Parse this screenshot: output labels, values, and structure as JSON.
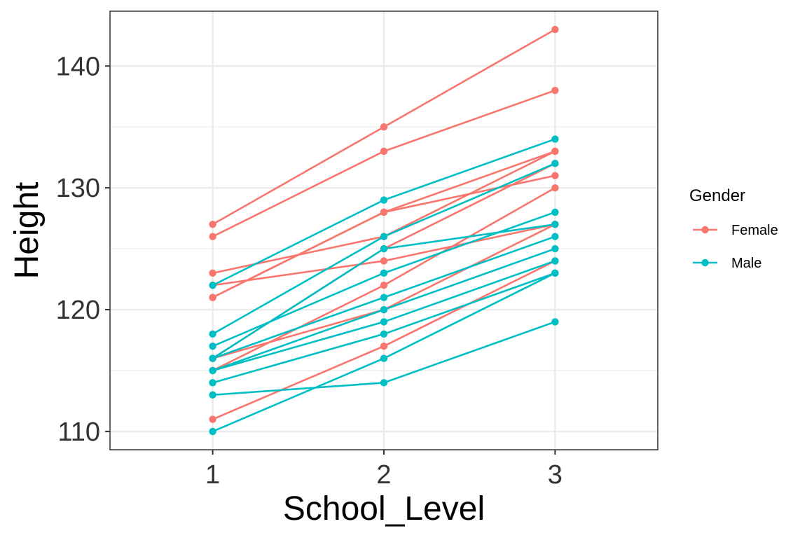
{
  "chart_data": {
    "type": "line",
    "xlabel": "School_Level",
    "ylabel": "Height",
    "x": [
      1,
      2,
      3
    ],
    "xlim": [
      0.4,
      3.6
    ],
    "ylim": [
      108.5,
      144.5
    ],
    "x_ticks": [
      "1",
      "2",
      "3"
    ],
    "y_ticks": [
      "110",
      "120",
      "130",
      "140"
    ],
    "y_tick_values": [
      110,
      120,
      130,
      140
    ],
    "grid": true,
    "markers": true,
    "legend": {
      "title": "Gender",
      "position": "right",
      "entries": [
        "Female",
        "Male"
      ]
    },
    "colors": {
      "Female": "#F8766D",
      "Male": "#00BFC4"
    },
    "lines": [
      {
        "group": "Female",
        "values": [
          127,
          135,
          143
        ]
      },
      {
        "group": "Female",
        "values": [
          126,
          133,
          138
        ]
      },
      {
        "group": "Female",
        "values": [
          123,
          126,
          133
        ]
      },
      {
        "group": "Female",
        "values": [
          122,
          124,
          127
        ]
      },
      {
        "group": "Female",
        "values": [
          121,
          128,
          133
        ]
      },
      {
        "group": "Female",
        "values": [
          121,
          128,
          131
        ]
      },
      {
        "group": "Female",
        "values": [
          116,
          125,
          132
        ]
      },
      {
        "group": "Female",
        "values": [
          116,
          120,
          127
        ]
      },
      {
        "group": "Female",
        "values": [
          115,
          122,
          130
        ]
      },
      {
        "group": "Female",
        "values": [
          111,
          117,
          124
        ]
      },
      {
        "group": "Male",
        "values": [
          122,
          129,
          134
        ]
      },
      {
        "group": "Male",
        "values": [
          118,
          126,
          132
        ]
      },
      {
        "group": "Male",
        "values": [
          117,
          123,
          128
        ]
      },
      {
        "group": "Male",
        "values": [
          116,
          125,
          127
        ]
      },
      {
        "group": "Male",
        "values": [
          116,
          121,
          126
        ]
      },
      {
        "group": "Male",
        "values": [
          115,
          120,
          125
        ]
      },
      {
        "group": "Male",
        "values": [
          115,
          119,
          124
        ]
      },
      {
        "group": "Male",
        "values": [
          114,
          118,
          123
        ]
      },
      {
        "group": "Male",
        "values": [
          113,
          114,
          119
        ]
      },
      {
        "group": "Male",
        "values": [
          110,
          116,
          123
        ]
      }
    ]
  }
}
